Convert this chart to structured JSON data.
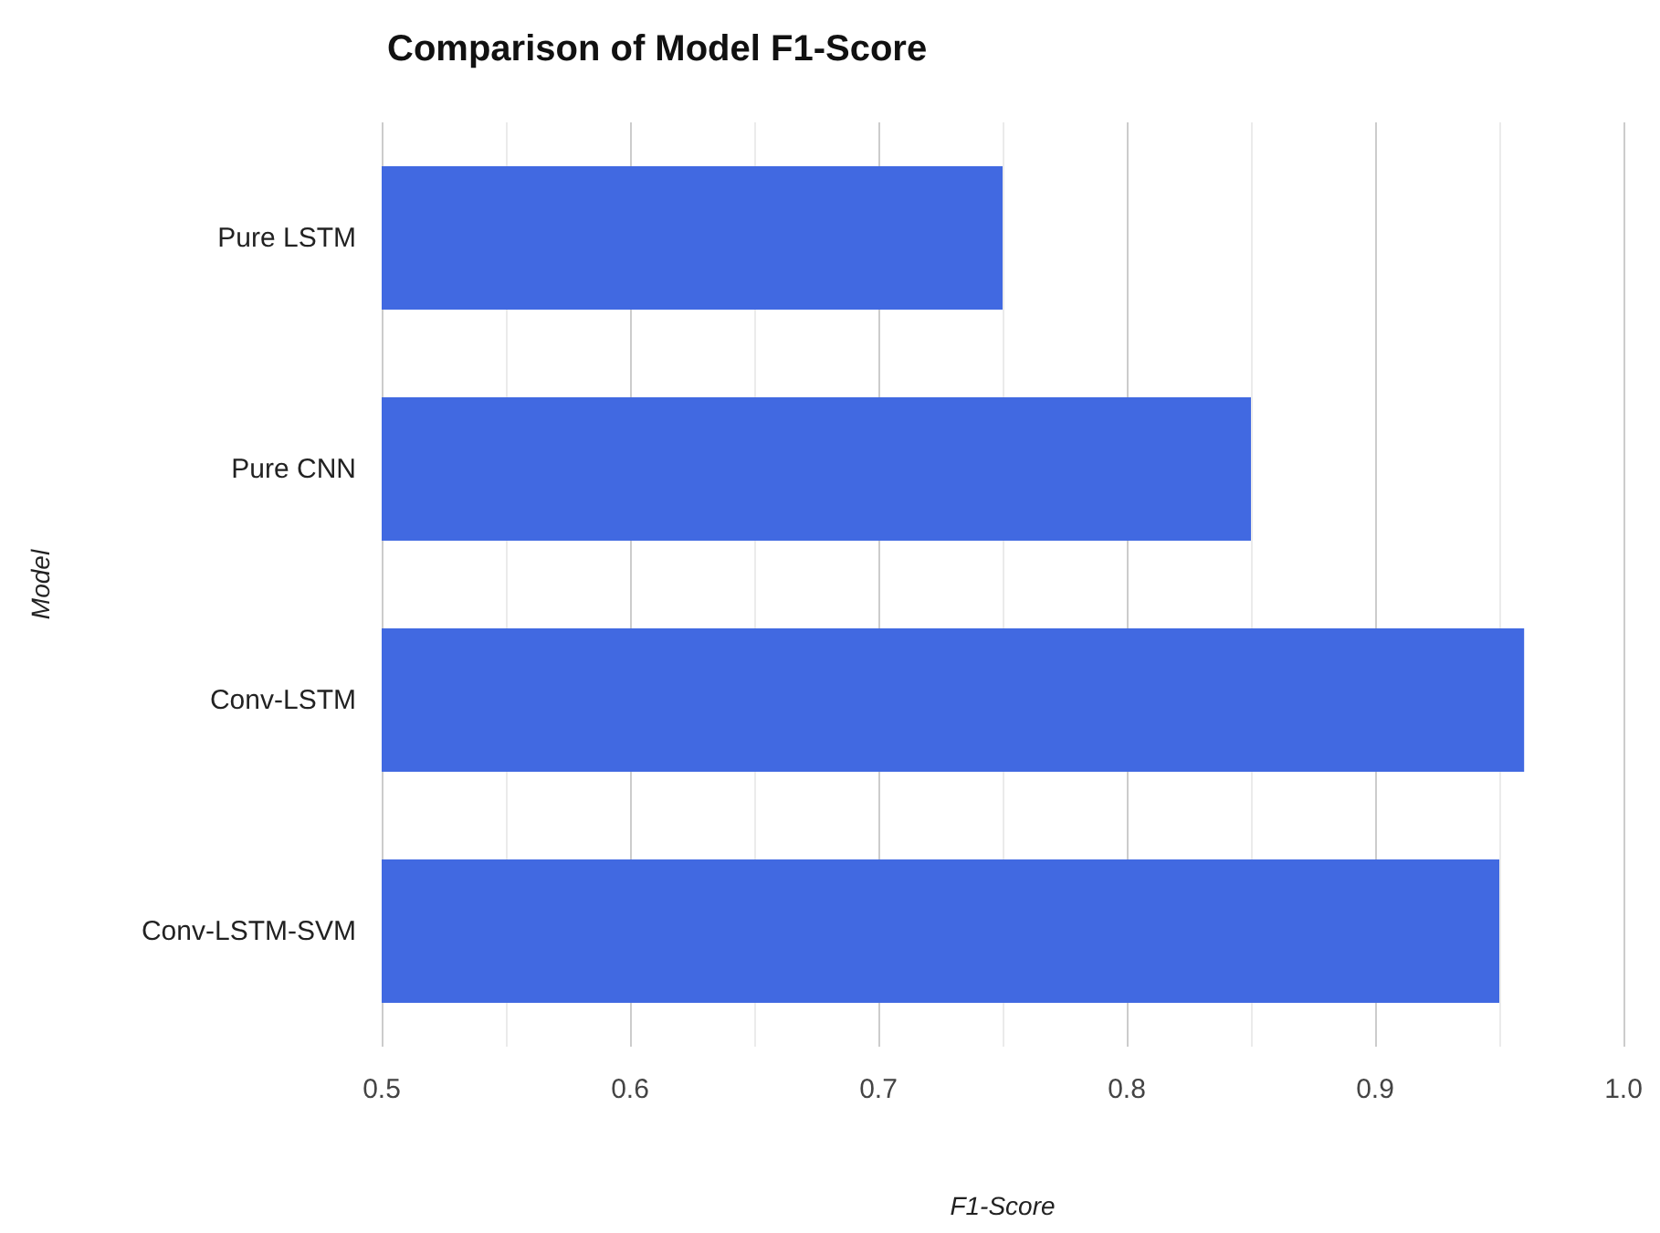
{
  "chart_data": {
    "type": "bar",
    "orientation": "horizontal",
    "title": "Comparison of Model F1-Score",
    "xlabel": "F1-Score",
    "ylabel": "Model",
    "categories": [
      "Pure LSTM",
      "Pure CNN",
      "Conv-LSTM",
      "Conv-LSTM-SVM"
    ],
    "values": [
      0.75,
      0.85,
      0.96,
      0.95
    ],
    "color": "#4169e1",
    "xlim": [
      0.5,
      1.0
    ],
    "xticks": [
      0.5,
      {
        "value": 0.55,
        "label": null
      },
      0.6,
      {
        "value": 0.65,
        "label": null
      },
      0.7,
      {
        "value": 0.75,
        "label": null
      },
      0.8,
      {
        "value": 0.85,
        "label": null
      },
      0.9,
      {
        "value": 0.95,
        "label": null
      },
      {
        "value": 1.0,
        "label": "1.0"
      }
    ],
    "grid": "x"
  }
}
